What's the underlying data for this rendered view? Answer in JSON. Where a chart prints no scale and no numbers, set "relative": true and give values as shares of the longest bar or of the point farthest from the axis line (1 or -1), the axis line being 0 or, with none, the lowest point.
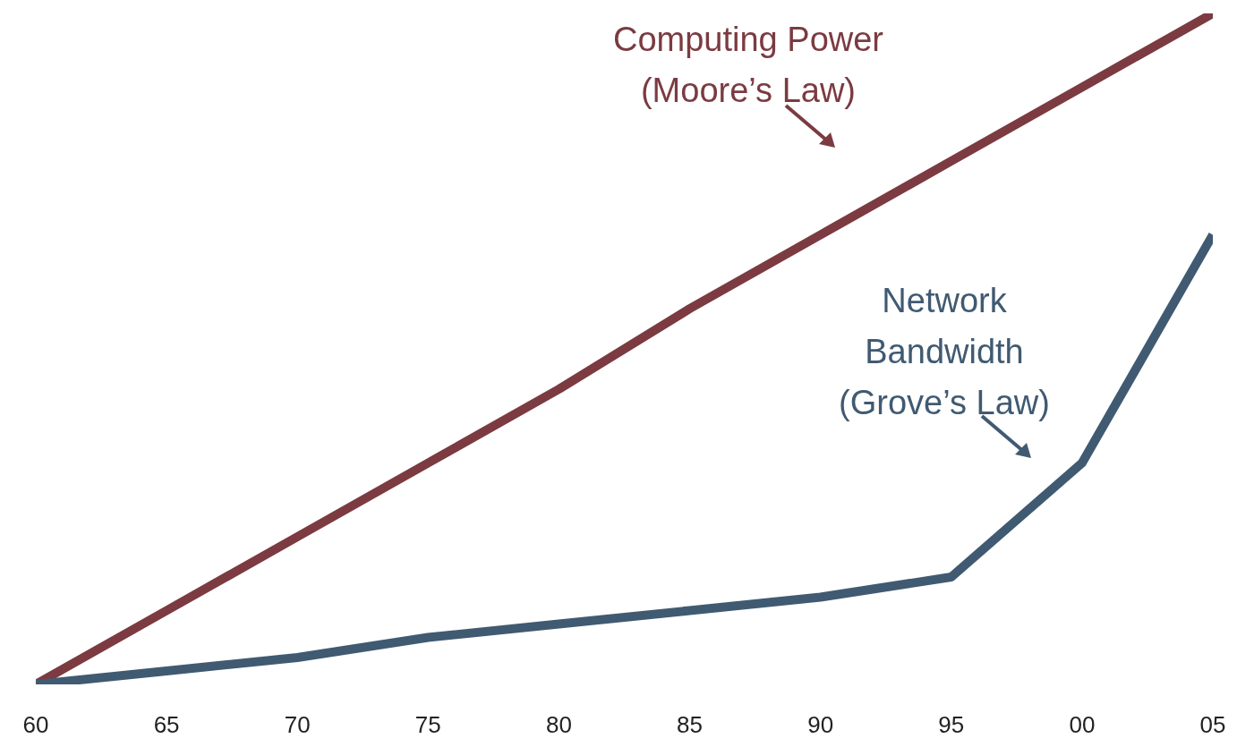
{
  "chart_data": {
    "type": "line",
    "relative": true,
    "categories": [
      "60",
      "65",
      "70",
      "75",
      "80",
      "85",
      "90",
      "95",
      "00",
      "05"
    ],
    "series": [
      {
        "color": "#7b3b41",
        "values": [
          0,
          0.11,
          0.22,
          0.33,
          0.44,
          0.56,
          0.67,
          0.78,
          0.89,
          1
        ]
      },
      {
        "color": "#405a72",
        "values": [
          0,
          0.02,
          0.04,
          0.07,
          0.09,
          0.11,
          0.13,
          0.16,
          0.33,
          0.67
        ]
      }
    ],
    "annotations": [
      "Computing Power\n(Moore’s Law)",
      "Network\nBandwidth\n(Grove’s Law)"
    ],
    "marker": "none",
    "line_style": "solid"
  }
}
